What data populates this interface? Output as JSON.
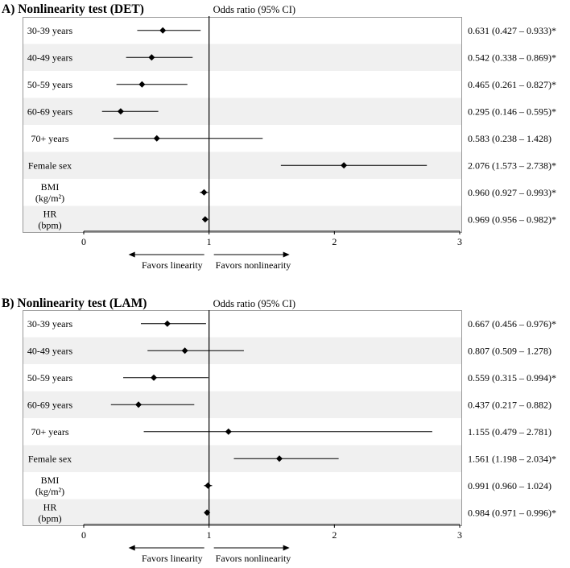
{
  "chart_data": [
    {
      "type": "forest",
      "title": "A) Nonlinearity  test (DET)",
      "header": "Odds ratio (95% CI)",
      "reference_value": 1,
      "xlim": [
        0,
        3
      ],
      "ticks": [
        "0",
        "1",
        "2",
        "3"
      ],
      "favor_left": "Favors linearity",
      "favor_right": "Favors nonlinearity",
      "rows": [
        {
          "label": [
            "30-39 years"
          ],
          "or": 0.631,
          "lo": 0.427,
          "hi": 0.933,
          "text": "0.631 (0.427 – 0.933)*"
        },
        {
          "label": [
            "40-49 years"
          ],
          "or": 0.542,
          "lo": 0.338,
          "hi": 0.869,
          "text": "0.542 (0.338 – 0.869)*"
        },
        {
          "label": [
            "50-59 years"
          ],
          "or": 0.465,
          "lo": 0.261,
          "hi": 0.827,
          "text": "0.465 (0.261 – 0.827)*"
        },
        {
          "label": [
            "60-69 years"
          ],
          "or": 0.295,
          "lo": 0.146,
          "hi": 0.595,
          "text": "0.295 (0.146 – 0.595)*"
        },
        {
          "label": [
            "70+ years"
          ],
          "or": 0.583,
          "lo": 0.238,
          "hi": 1.428,
          "text": "0.583 (0.238 – 1.428)"
        },
        {
          "label": [
            "Female sex"
          ],
          "or": 2.076,
          "lo": 1.573,
          "hi": 2.738,
          "text": "2.076 (1.573 – 2.738)*"
        },
        {
          "label": [
            "BMI",
            "(kg/m²)"
          ],
          "or": 0.96,
          "lo": 0.927,
          "hi": 0.993,
          "text": "0.960 (0.927 – 0.993)*"
        },
        {
          "label": [
            "HR",
            "(bpm)"
          ],
          "or": 0.969,
          "lo": 0.956,
          "hi": 0.982,
          "text": "0.969 (0.956 – 0.982)*"
        }
      ]
    },
    {
      "type": "forest",
      "title": "B) Nonlinearity  test (LAM)",
      "header": "Odds ratio (95% CI)",
      "reference_value": 1,
      "xlim": [
        0,
        3
      ],
      "ticks": [
        "0",
        "1",
        "2",
        "3"
      ],
      "favor_left": "Favors linearity",
      "favor_right": "Favors nonlinearity",
      "rows": [
        {
          "label": [
            "30-39 years"
          ],
          "or": 0.667,
          "lo": 0.456,
          "hi": 0.976,
          "text": "0.667 (0.456 – 0.976)*"
        },
        {
          "label": [
            "40-49 years"
          ],
          "or": 0.807,
          "lo": 0.509,
          "hi": 1.278,
          "text": "0.807 (0.509 – 1.278)"
        },
        {
          "label": [
            "50-59 years"
          ],
          "or": 0.559,
          "lo": 0.315,
          "hi": 0.994,
          "text": "0.559 (0.315 – 0.994)*"
        },
        {
          "label": [
            "60-69 years"
          ],
          "or": 0.437,
          "lo": 0.217,
          "hi": 0.882,
          "text": "0.437 (0.217 – 0.882)"
        },
        {
          "label": [
            "70+ years"
          ],
          "or": 1.155,
          "lo": 0.479,
          "hi": 2.781,
          "text": "1.155 (0.479 – 2.781)"
        },
        {
          "label": [
            "Female sex"
          ],
          "or": 1.561,
          "lo": 1.198,
          "hi": 2.034,
          "text": "1.561 (1.198 – 2.034)*"
        },
        {
          "label": [
            "BMI",
            "(kg/m²)"
          ],
          "or": 0.991,
          "lo": 0.96,
          "hi": 1.024,
          "text": "0.991 (0.960 – 1.024)"
        },
        {
          "label": [
            "HR",
            "(bpm)"
          ],
          "or": 0.984,
          "lo": 0.971,
          "hi": 0.996,
          "text": "0.984 (0.971 – 0.996)*"
        }
      ]
    }
  ]
}
